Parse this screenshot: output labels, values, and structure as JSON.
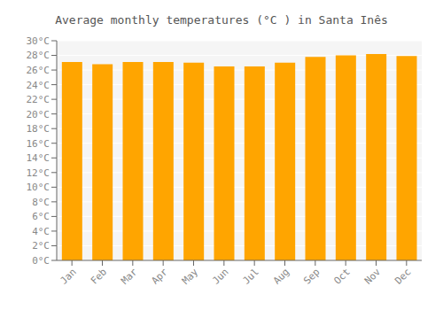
{
  "chart_data": {
    "type": "bar",
    "title": "Average monthly temperatures (°C ) in Santa Inês",
    "categories": [
      "Jan",
      "Feb",
      "Mar",
      "Apr",
      "May",
      "Jun",
      "Jul",
      "Aug",
      "Sep",
      "Oct",
      "Nov",
      "Dec"
    ],
    "values": [
      27.1,
      26.8,
      27.1,
      27.1,
      27.0,
      26.5,
      26.5,
      27.0,
      27.8,
      28.0,
      28.2,
      27.9
    ],
    "color": "#FFA500",
    "ylim": [
      0,
      30
    ],
    "yticks": [
      {
        "value": 0,
        "label": "0°C"
      },
      {
        "value": 2,
        "label": "2°C"
      },
      {
        "value": 4,
        "label": "4°C"
      },
      {
        "value": 6,
        "label": "6°C"
      },
      {
        "value": 8,
        "label": "8°C"
      },
      {
        "value": 10,
        "label": "10°C"
      },
      {
        "value": 12,
        "label": "12°C"
      },
      {
        "value": 14,
        "label": "14°C"
      },
      {
        "value": 16,
        "label": "16°C"
      },
      {
        "value": 18,
        "label": "18°C"
      },
      {
        "value": 20,
        "label": "20°C"
      },
      {
        "value": 22,
        "label": "22°C"
      },
      {
        "value": 24,
        "label": "24°C"
      },
      {
        "value": 26,
        "label": "26°C"
      },
      {
        "value": 28,
        "label": "28°C"
      },
      {
        "value": 30,
        "label": "30°C"
      }
    ],
    "grid": true
  }
}
